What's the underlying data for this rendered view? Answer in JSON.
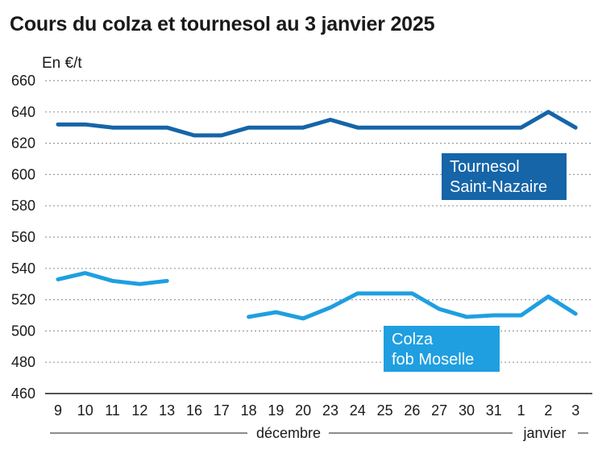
{
  "title": "Cours du colza et tournesol au 3 janvier 2025",
  "unit": "En €/t",
  "months": [
    "décembre",
    "janvier"
  ],
  "chart_data": {
    "type": "line",
    "title": "Cours du colza et tournesol au 3 janvier 2025",
    "ylabel": "En €/t",
    "ylim": [
      460,
      660
    ],
    "yticks": [
      460,
      480,
      500,
      520,
      540,
      560,
      580,
      600,
      620,
      640,
      660
    ],
    "categories": [
      "9",
      "10",
      "11",
      "12",
      "13",
      "16",
      "17",
      "18",
      "19",
      "20",
      "23",
      "24",
      "25",
      "26",
      "27",
      "30",
      "31",
      "1",
      "2",
      "3"
    ],
    "grid": true,
    "series": [
      {
        "name": "Tournesol Saint-Nazaire",
        "label_lines": [
          "Tournesol",
          "Saint-Nazaire"
        ],
        "color": "#1565a8",
        "values": [
          632,
          632,
          630,
          630,
          630,
          625,
          625,
          630,
          630,
          630,
          635,
          630,
          630,
          630,
          630,
          630,
          630,
          630,
          640,
          630
        ]
      },
      {
        "name": "Colza fob Moselle",
        "label_lines": [
          "Colza",
          "fob Moselle"
        ],
        "color": "#1f9fe0",
        "values": [
          533,
          537,
          532,
          530,
          532,
          null,
          null,
          509,
          512,
          508,
          515,
          524,
          524,
          524,
          514,
          509,
          510,
          510,
          522,
          511
        ]
      }
    ]
  }
}
